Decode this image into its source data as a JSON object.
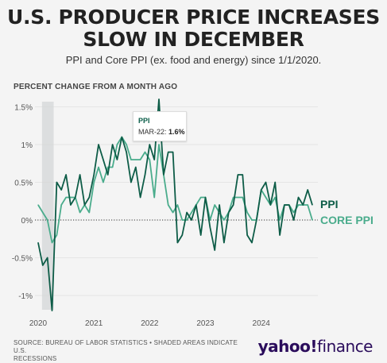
{
  "header": {
    "title_line1": "U.S. PRODUCER PRICE INCREASES",
    "title_line2": "SLOW IN DECEMBER",
    "subtitle": "PPI and Core PPI (ex. food and energy) since 1/1/2020."
  },
  "footer": {
    "source_line1": "SOURCE: BUREAU OF LABOR STATISTICS • SHADED AREAS INDICATE U.S.",
    "source_line2": "RECESSIONS",
    "brand_prefix": "yahoo!",
    "brand_suffix": "finance"
  },
  "tooltip": {
    "series": "PPI",
    "date_label": "MAR-22:",
    "value_label": "1.6%"
  },
  "colors": {
    "ppi": "#0d5c47",
    "core_ppi": "#4aac8c",
    "recession": "#dcdedf",
    "zero_line": "#333333",
    "grid": "#d5d5d5"
  },
  "chart_data": {
    "type": "line",
    "ylabel": "PERCENT CHANGE FROM A MONTH AGO",
    "ylim": [
      -1.2,
      1.6
    ],
    "yticks": [
      1.5,
      1,
      0.5,
      0,
      -0.5,
      -1
    ],
    "ytick_labels": [
      "1.5%",
      "1%",
      "0.5%",
      "0%",
      "-0.5%",
      "-1%"
    ],
    "xticks": [
      "2020",
      "2021",
      "2022",
      "2023",
      "2024"
    ],
    "x_start": "2020-01",
    "x_end": "2024-12",
    "recession": [
      "2020-02",
      "2020-04"
    ],
    "grid": true,
    "series": [
      {
        "name": "PPI",
        "values": [
          -0.3,
          -0.6,
          -0.5,
          -1.2,
          0.5,
          0.4,
          0.6,
          0.2,
          0.3,
          0.6,
          0.2,
          0.3,
          0.6,
          1.0,
          0.8,
          0.6,
          1.0,
          0.8,
          1.1,
          0.9,
          0.5,
          0.7,
          0.3,
          0.6,
          1.0,
          0.8,
          1.6,
          0.6,
          0.9,
          0.9,
          -0.3,
          -0.2,
          0.1,
          0.0,
          0.2,
          -0.2,
          0.3,
          -0.1,
          -0.4,
          0.2,
          -0.3,
          0.1,
          0.2,
          0.6,
          0.6,
          -0.2,
          -0.3,
          0.0,
          0.4,
          0.5,
          0.2,
          0.5,
          -0.2,
          0.2,
          0.2,
          0.0,
          0.3,
          0.2,
          0.4,
          0.2
        ],
        "label": "PPI"
      },
      {
        "name": "CORE PPI",
        "values": [
          0.2,
          0.1,
          0.0,
          -0.3,
          -0.2,
          0.2,
          0.3,
          0.3,
          0.3,
          0.1,
          0.2,
          0.1,
          0.5,
          0.7,
          0.5,
          0.7,
          0.7,
          1.0,
          1.1,
          1.0,
          0.8,
          0.8,
          0.8,
          0.9,
          0.8,
          0.3,
          1.0,
          0.6,
          0.2,
          0.1,
          0.2,
          0.0,
          0.0,
          0.1,
          0.2,
          0.3,
          0.3,
          0.0,
          0.2,
          0.1,
          0.0,
          0.1,
          0.3,
          0.3,
          0.3,
          0.1,
          0.0,
          0.0,
          0.4,
          0.3,
          0.2,
          0.3,
          0.0,
          0.2,
          0.2,
          0.1,
          0.2,
          0.2,
          0.2,
          0.0
        ],
        "label": "CORE PPI"
      }
    ]
  }
}
